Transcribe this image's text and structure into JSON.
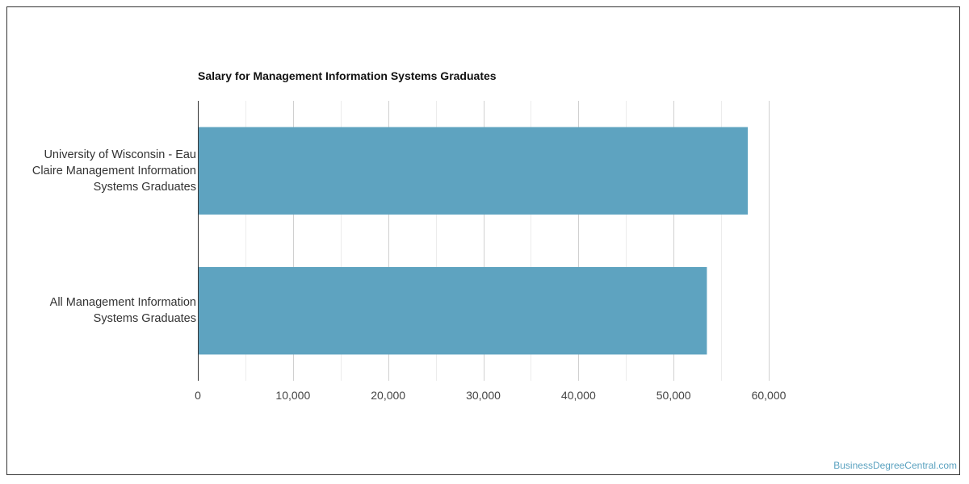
{
  "chart_data": {
    "type": "bar",
    "orientation": "horizontal",
    "title": "Salary for Management Information Systems Graduates",
    "categories": [
      [
        "University of Wisconsin - Eau",
        "Claire Management Information",
        "Systems Graduates"
      ],
      [
        "All Management Information",
        "Systems Graduates"
      ]
    ],
    "values": [
      57800,
      53500
    ],
    "xlim": [
      0,
      60000
    ],
    "ticks": [
      0,
      10000,
      20000,
      30000,
      40000,
      50000,
      60000
    ],
    "tick_labels": [
      "0",
      "10,000",
      "20,000",
      "30,000",
      "40,000",
      "50,000",
      "60,000"
    ],
    "bar_color": "#5ea3c0",
    "grid": true
  },
  "watermark": "BusinessDegreeCentral.com"
}
